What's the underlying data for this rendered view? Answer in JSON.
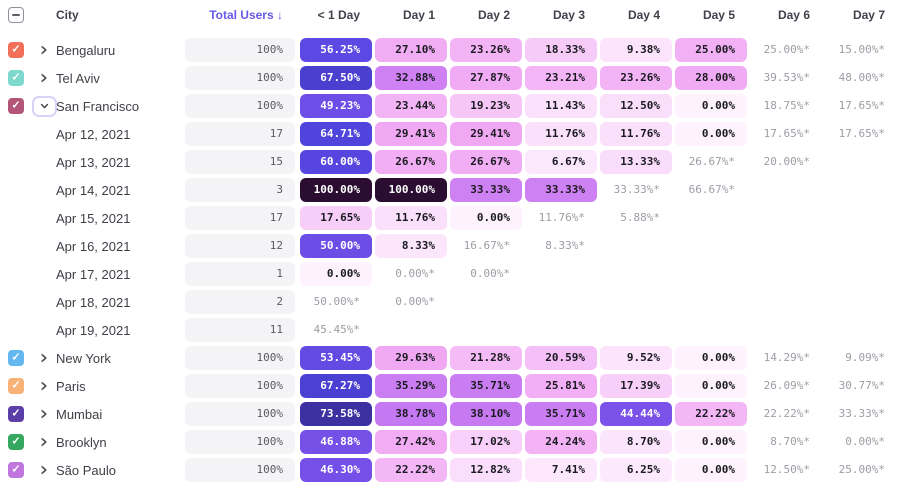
{
  "table": {
    "columns": [
      "City",
      "Total Users ↓",
      "< 1 Day",
      "Day 1",
      "Day 2",
      "Day 3",
      "Day 4",
      "Day 5",
      "Day 6",
      "Day 7"
    ],
    "rows": [
      {
        "type": "city",
        "label": "Bengaluru",
        "checkbox_color": "#f2705a",
        "expanded": false,
        "total": "100%",
        "cells": [
          {
            "value": 56.25,
            "label": "56.25%"
          },
          {
            "value": 27.1,
            "label": "27.10%"
          },
          {
            "value": 23.26,
            "label": "23.26%"
          },
          {
            "value": 18.33,
            "label": "18.33%"
          },
          {
            "value": 9.38,
            "label": "9.38%"
          },
          {
            "value": 25.0,
            "label": "25.00%"
          },
          {
            "star": true,
            "label": "25.00%*"
          },
          {
            "star": true,
            "label": "15.00%*"
          }
        ]
      },
      {
        "type": "city",
        "label": "Tel Aviv",
        "checkbox_color": "#7fd8cd",
        "expanded": false,
        "total": "100%",
        "cells": [
          {
            "value": 67.5,
            "label": "67.50%"
          },
          {
            "value": 32.88,
            "label": "32.88%"
          },
          {
            "value": 27.87,
            "label": "27.87%"
          },
          {
            "value": 23.21,
            "label": "23.21%"
          },
          {
            "value": 23.26,
            "label": "23.26%"
          },
          {
            "value": 28.0,
            "label": "28.00%"
          },
          {
            "star": true,
            "label": "39.53%*"
          },
          {
            "star": true,
            "label": "48.00%*"
          }
        ]
      },
      {
        "type": "city",
        "label": "San Francisco",
        "checkbox_color": "#b25577",
        "expanded": true,
        "total": "100%",
        "cells": [
          {
            "value": 49.23,
            "label": "49.23%"
          },
          {
            "value": 23.44,
            "label": "23.44%"
          },
          {
            "value": 19.23,
            "label": "19.23%"
          },
          {
            "value": 11.43,
            "label": "11.43%"
          },
          {
            "value": 12.5,
            "label": "12.50%"
          },
          {
            "value": 0.0,
            "label": "0.00%"
          },
          {
            "star": true,
            "label": "18.75%*"
          },
          {
            "star": true,
            "label": "17.65%*"
          }
        ]
      },
      {
        "type": "date",
        "label": "Apr 12, 2021",
        "total": "17",
        "cells": [
          {
            "value": 64.71,
            "label": "64.71%"
          },
          {
            "value": 29.41,
            "label": "29.41%"
          },
          {
            "value": 29.41,
            "label": "29.41%"
          },
          {
            "value": 11.76,
            "label": "11.76%"
          },
          {
            "value": 11.76,
            "label": "11.76%"
          },
          {
            "value": 0.0,
            "label": "0.00%"
          },
          {
            "star": true,
            "label": "17.65%*"
          },
          {
            "star": true,
            "label": "17.65%*"
          }
        ]
      },
      {
        "type": "date",
        "label": "Apr 13, 2021",
        "total": "15",
        "cells": [
          {
            "value": 60.0,
            "label": "60.00%"
          },
          {
            "value": 26.67,
            "label": "26.67%"
          },
          {
            "value": 26.67,
            "label": "26.67%"
          },
          {
            "value": 6.67,
            "label": "6.67%"
          },
          {
            "value": 13.33,
            "label": "13.33%"
          },
          {
            "star": true,
            "label": "26.67%*"
          },
          {
            "star": true,
            "label": "20.00%*"
          },
          null
        ]
      },
      {
        "type": "date",
        "label": "Apr 14, 2021",
        "total": "3",
        "cells": [
          {
            "value": 100.0,
            "label": "100.00%"
          },
          {
            "value": 100.0,
            "label": "100.00%"
          },
          {
            "value": 33.33,
            "label": "33.33%"
          },
          {
            "value": 33.33,
            "label": "33.33%"
          },
          {
            "star": true,
            "label": "33.33%*"
          },
          {
            "star": true,
            "label": "66.67%*"
          },
          null,
          null
        ]
      },
      {
        "type": "date",
        "label": "Apr 15, 2021",
        "total": "17",
        "cells": [
          {
            "value": 17.65,
            "label": "17.65%"
          },
          {
            "value": 11.76,
            "label": "11.76%"
          },
          {
            "value": 0.0,
            "label": "0.00%"
          },
          {
            "star": true,
            "label": "11.76%*"
          },
          {
            "star": true,
            "label": "5.88%*"
          },
          null,
          null,
          null
        ]
      },
      {
        "type": "date",
        "label": "Apr 16, 2021",
        "total": "12",
        "cells": [
          {
            "value": 50.0,
            "label": "50.00%"
          },
          {
            "value": 8.33,
            "label": "8.33%"
          },
          {
            "star": true,
            "label": "16.67%*"
          },
          {
            "star": true,
            "label": "8.33%*"
          },
          null,
          null,
          null,
          null
        ]
      },
      {
        "type": "date",
        "label": "Apr 17, 2021",
        "total": "1",
        "cells": [
          {
            "value": 0.0,
            "label": "0.00%"
          },
          {
            "star": true,
            "label": "0.00%*"
          },
          {
            "star": true,
            "label": "0.00%*"
          },
          null,
          null,
          null,
          null,
          null
        ]
      },
      {
        "type": "date",
        "label": "Apr 18, 2021",
        "total": "2",
        "cells": [
          {
            "star": true,
            "label": "50.00%*"
          },
          {
            "star": true,
            "label": "0.00%*"
          },
          null,
          null,
          null,
          null,
          null,
          null
        ]
      },
      {
        "type": "date",
        "label": "Apr 19, 2021",
        "total": "11",
        "cells": [
          {
            "star": true,
            "label": "45.45%*"
          },
          null,
          null,
          null,
          null,
          null,
          null,
          null
        ]
      },
      {
        "type": "city",
        "label": "New York",
        "checkbox_color": "#63b8f0",
        "expanded": false,
        "total": "100%",
        "cells": [
          {
            "value": 53.45,
            "label": "53.45%"
          },
          {
            "value": 29.63,
            "label": "29.63%"
          },
          {
            "value": 21.28,
            "label": "21.28%"
          },
          {
            "value": 20.59,
            "label": "20.59%"
          },
          {
            "value": 9.52,
            "label": "9.52%"
          },
          {
            "value": 0.0,
            "label": "0.00%"
          },
          {
            "star": true,
            "label": "14.29%*"
          },
          {
            "star": true,
            "label": "9.09%*"
          }
        ]
      },
      {
        "type": "city",
        "label": "Paris",
        "checkbox_color": "#f8b176",
        "expanded": false,
        "total": "100%",
        "cells": [
          {
            "value": 67.27,
            "label": "67.27%"
          },
          {
            "value": 35.29,
            "label": "35.29%"
          },
          {
            "value": 35.71,
            "label": "35.71%"
          },
          {
            "value": 25.81,
            "label": "25.81%"
          },
          {
            "value": 17.39,
            "label": "17.39%"
          },
          {
            "value": 0.0,
            "label": "0.00%"
          },
          {
            "star": true,
            "label": "26.09%*"
          },
          {
            "star": true,
            "label": "30.77%*"
          }
        ]
      },
      {
        "type": "city",
        "label": "Mumbai",
        "checkbox_color": "#5a3da6",
        "expanded": false,
        "total": "100%",
        "cells": [
          {
            "value": 73.58,
            "label": "73.58%"
          },
          {
            "value": 38.78,
            "label": "38.78%"
          },
          {
            "value": 38.1,
            "label": "38.10%"
          },
          {
            "value": 35.71,
            "label": "35.71%"
          },
          {
            "value": 44.44,
            "label": "44.44%"
          },
          {
            "value": 22.22,
            "label": "22.22%"
          },
          {
            "star": true,
            "label": "22.22%*"
          },
          {
            "star": true,
            "label": "33.33%*"
          }
        ]
      },
      {
        "type": "city",
        "label": "Brooklyn",
        "checkbox_color": "#35a85f",
        "expanded": false,
        "total": "100%",
        "cells": [
          {
            "value": 46.88,
            "label": "46.88%"
          },
          {
            "value": 27.42,
            "label": "27.42%"
          },
          {
            "value": 17.02,
            "label": "17.02%"
          },
          {
            "value": 24.24,
            "label": "24.24%"
          },
          {
            "value": 8.7,
            "label": "8.70%"
          },
          {
            "value": 0.0,
            "label": "0.00%"
          },
          {
            "star": true,
            "label": "8.70%*"
          },
          {
            "star": true,
            "label": "0.00%*"
          }
        ]
      },
      {
        "type": "city",
        "label": "São Paulo",
        "checkbox_color": "#c077dd",
        "expanded": false,
        "total": "100%",
        "cells": [
          {
            "value": 46.3,
            "label": "46.30%"
          },
          {
            "value": 22.22,
            "label": "22.22%"
          },
          {
            "value": 12.82,
            "label": "12.82%"
          },
          {
            "value": 7.41,
            "label": "7.41%"
          },
          {
            "value": 6.25,
            "label": "6.25%"
          },
          {
            "value": 0.0,
            "label": "0.00%"
          },
          {
            "star": true,
            "label": "12.50%*"
          },
          {
            "star": true,
            "label": "25.00%*"
          }
        ]
      }
    ]
  },
  "colors": {
    "sorted_header": "#6a5ae9",
    "header_text": "#41414b",
    "star_text": "#9c9da5",
    "cell_text_dark": "#1a1a21",
    "cell_text_light": "#ffffff",
    "heat_scale": [
      {
        "pct": 0,
        "hex": "#fdf2fd"
      },
      {
        "pct": 7,
        "hex": "#fce8fc"
      },
      {
        "pct": 13,
        "hex": "#fadefb"
      },
      {
        "pct": 18,
        "hex": "#f7cdf8"
      },
      {
        "pct": 22,
        "hex": "#f4b7f6"
      },
      {
        "pct": 30,
        "hex": "#f0a7f3"
      },
      {
        "pct": 31,
        "hex": "#d284f3"
      },
      {
        "pct": 39,
        "hex": "#c478f1"
      },
      {
        "pct": 44,
        "hex": "#7b52e9"
      },
      {
        "pct": 56,
        "hex": "#5c48e2"
      },
      {
        "pct": 66,
        "hex": "#4d43db"
      },
      {
        "pct": 74,
        "hex": "#3c2f9d"
      },
      {
        "pct": 100,
        "hex": "#2a0d31"
      }
    ]
  }
}
